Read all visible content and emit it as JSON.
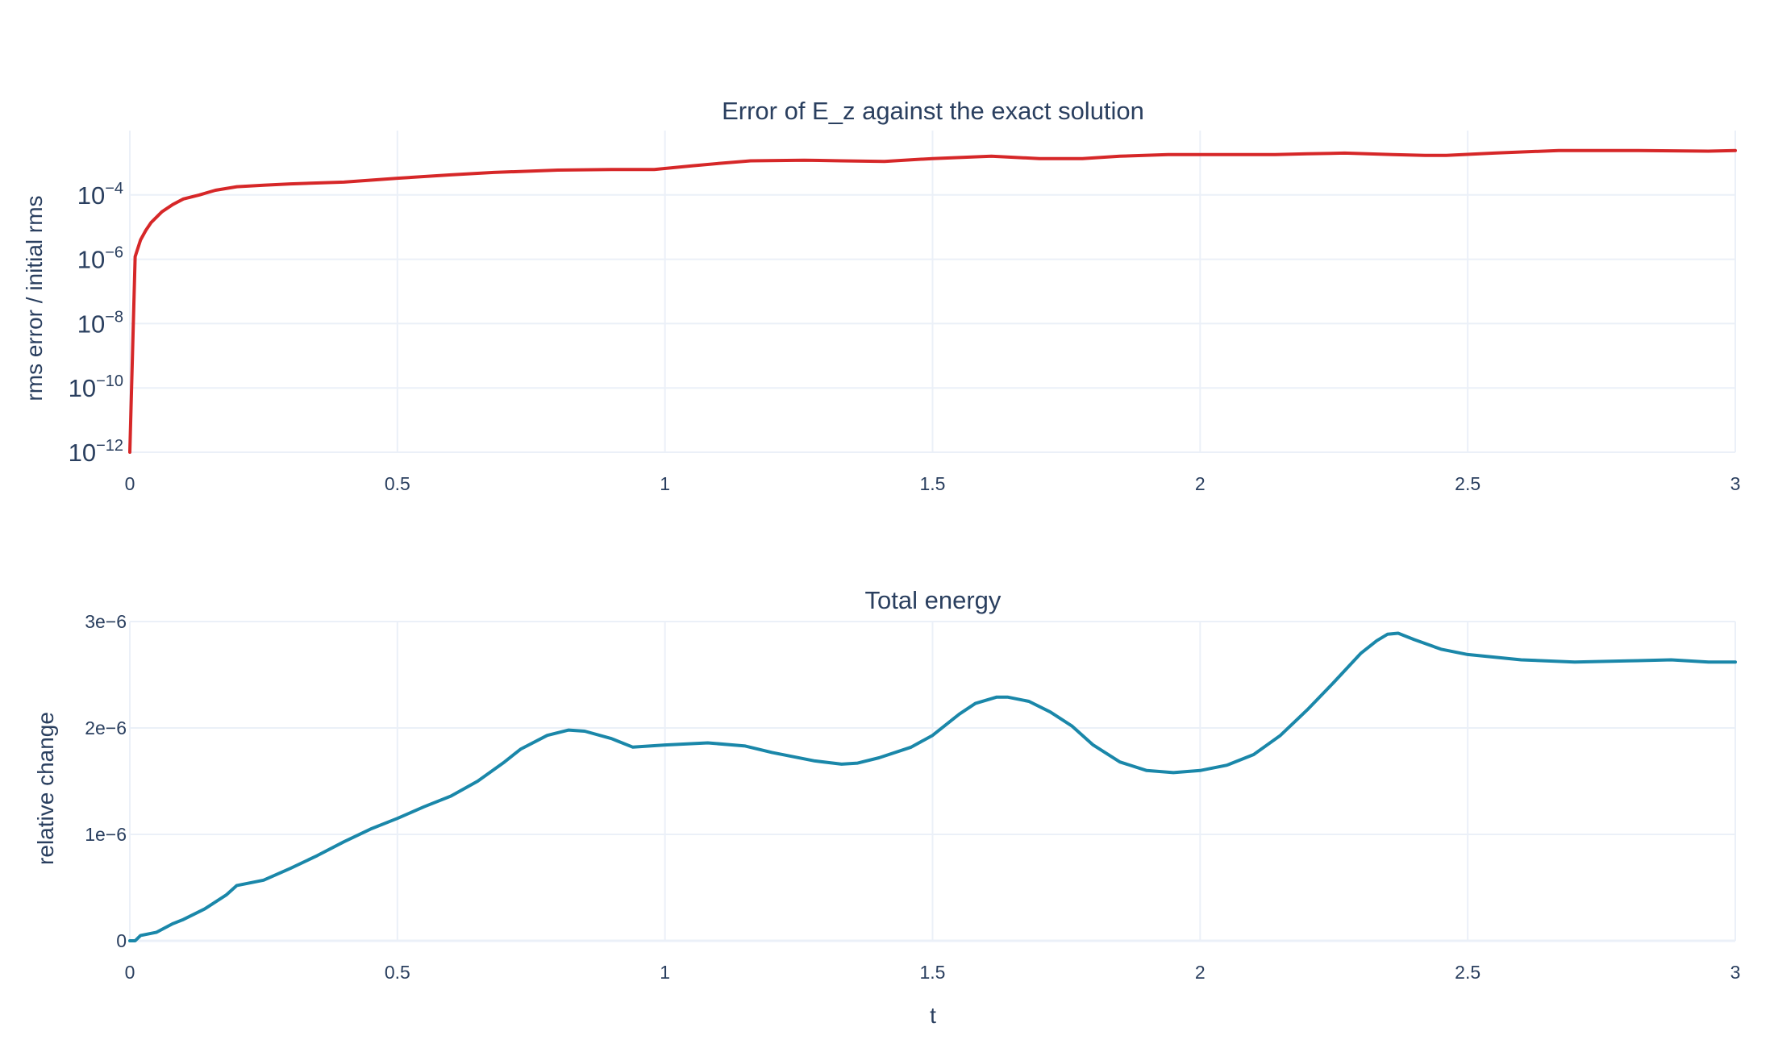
{
  "chart_data": [
    {
      "type": "line",
      "title": "Error of E_z against the exact solution",
      "xlabel": "",
      "ylabel": "rms error / initial rms",
      "yscale": "log",
      "xlim": [
        0,
        3
      ],
      "ylim": [
        1e-12,
        0.01
      ],
      "xticks": [
        "0",
        "0.5",
        "1",
        "1.5",
        "2",
        "2.5",
        "3"
      ],
      "xtick_values": [
        0,
        0.5,
        1,
        1.5,
        2,
        2.5,
        3
      ],
      "ytick_base": "10",
      "ytick_exponents": [
        "−12",
        "−10",
        "−8",
        "−6",
        "−4"
      ],
      "ytick_values": [
        1e-12,
        1e-10,
        1e-08,
        1e-06,
        0.0001
      ],
      "grid": true,
      "legend": "none",
      "color": "#d62728",
      "series": [
        {
          "x": [
            0,
            0.01,
            0.02,
            0.03,
            0.04,
            0.06,
            0.08,
            0.1,
            0.13,
            0.16,
            0.2,
            0.25,
            0.3,
            0.4,
            0.5,
            0.6,
            0.68,
            0.8,
            0.9,
            0.98,
            1.05,
            1.1,
            1.16,
            1.26,
            1.33,
            1.41,
            1.5,
            1.61,
            1.7,
            1.78,
            1.85,
            1.94,
            2.05,
            2.14,
            2.2,
            2.27,
            2.36,
            2.42,
            2.46,
            2.55,
            2.67,
            2.8,
            2.95,
            3.0
          ],
          "y": [
            1e-12,
            1.2e-06,
            4e-06,
            8e-06,
            1.4e-05,
            3e-05,
            5e-05,
            7.5e-05,
            0.0001,
            0.00014,
            0.00018,
            0.0002,
            0.00022,
            0.00025,
            0.00033,
            0.00042,
            0.0005,
            0.00059,
            0.00062,
            0.00062,
            0.0008,
            0.00095,
            0.00115,
            0.0012,
            0.00115,
            0.0011,
            0.00135,
            0.0016,
            0.00135,
            0.00135,
            0.0016,
            0.0018,
            0.0018,
            0.0018,
            0.0019,
            0.002,
            0.0018,
            0.0017,
            0.0017,
            0.002,
            0.0024,
            0.0024,
            0.0023,
            0.0024
          ]
        }
      ]
    },
    {
      "type": "line",
      "title": "Total energy",
      "xlabel": "t",
      "ylabel": "relative change",
      "xlim": [
        0,
        3
      ],
      "ylim": [
        0,
        3e-06
      ],
      "xticks": [
        "0",
        "0.5",
        "1",
        "1.5",
        "2",
        "2.5",
        "3"
      ],
      "xtick_values": [
        0,
        0.5,
        1,
        1.5,
        2,
        2.5,
        3
      ],
      "yticks": [
        "0",
        "1e−6",
        "2e−6",
        "3e−6"
      ],
      "ytick_values": [
        0,
        1e-06,
        2e-06,
        3e-06
      ],
      "grid": true,
      "legend": "none",
      "color": "#1a87a9",
      "series": [
        {
          "x": [
            0,
            0.01,
            0.02,
            0.05,
            0.08,
            0.1,
            0.14,
            0.18,
            0.2,
            0.25,
            0.3,
            0.35,
            0.4,
            0.45,
            0.5,
            0.55,
            0.6,
            0.65,
            0.7,
            0.73,
            0.78,
            0.82,
            0.85,
            0.9,
            0.94,
            1.0,
            1.08,
            1.15,
            1.2,
            1.28,
            1.33,
            1.36,
            1.4,
            1.46,
            1.5,
            1.55,
            1.58,
            1.62,
            1.64,
            1.68,
            1.72,
            1.76,
            1.8,
            1.85,
            1.9,
            1.95,
            2.0,
            2.05,
            2.1,
            2.15,
            2.2,
            2.25,
            2.3,
            2.33,
            2.35,
            2.37,
            2.4,
            2.45,
            2.5,
            2.6,
            2.7,
            2.8,
            2.88,
            2.95,
            3.0
          ],
          "y": [
            0,
            0.0,
            5e-08,
            8e-08,
            1.6e-07,
            2e-07,
            3e-07,
            4.3e-07,
            5.2e-07,
            5.7e-07,
            6.8e-07,
            8e-07,
            9.3e-07,
            1.05e-06,
            1.15e-06,
            1.26e-06,
            1.36e-06,
            1.5e-06,
            1.68e-06,
            1.8e-06,
            1.93e-06,
            1.98e-06,
            1.97e-06,
            1.9e-06,
            1.82e-06,
            1.84e-06,
            1.86e-06,
            1.83e-06,
            1.77e-06,
            1.69e-06,
            1.66e-06,
            1.67e-06,
            1.72e-06,
            1.82e-06,
            1.93e-06,
            2.13e-06,
            2.23e-06,
            2.29e-06,
            2.29e-06,
            2.25e-06,
            2.15e-06,
            2.02e-06,
            1.84e-06,
            1.68e-06,
            1.6e-06,
            1.58e-06,
            1.6e-06,
            1.65e-06,
            1.75e-06,
            1.93e-06,
            2.17e-06,
            2.43e-06,
            2.7e-06,
            2.82e-06,
            2.88e-06,
            2.89e-06,
            2.83e-06,
            2.74e-06,
            2.69e-06,
            2.64e-06,
            2.62e-06,
            2.63e-06,
            2.64e-06,
            2.62e-06,
            2.62e-06
          ]
        }
      ]
    }
  ]
}
